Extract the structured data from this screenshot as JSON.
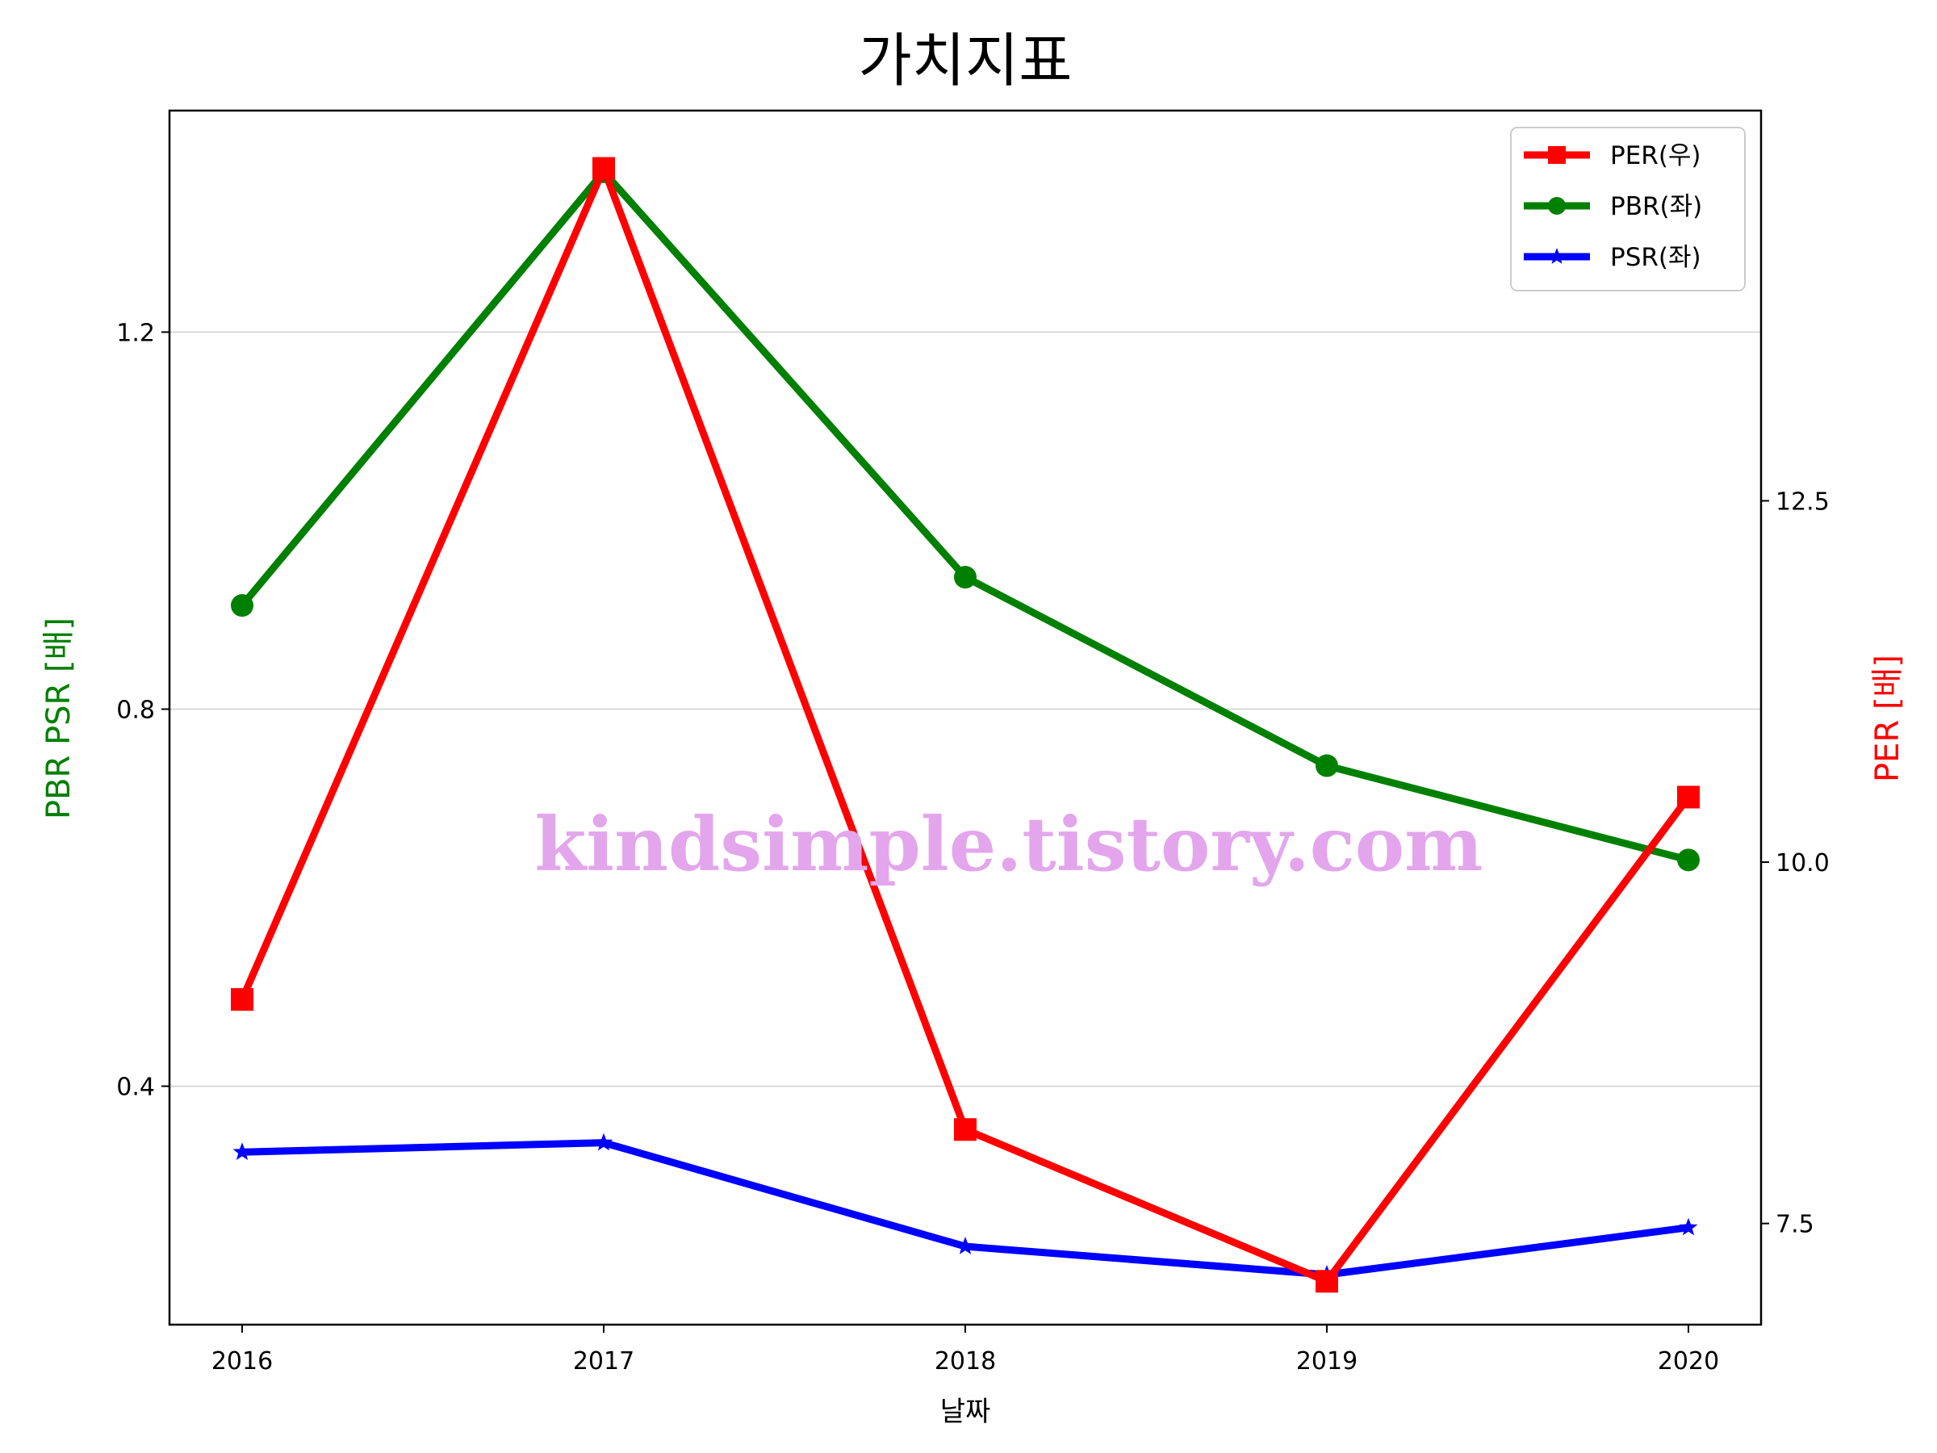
{
  "chart_data": {
    "type": "line",
    "title": "가치지표",
    "xlabel": "날짜",
    "ylabel_left": "PBR PSR [배]",
    "ylabel_right": "PER [배]",
    "categories": [
      "2016",
      "2017",
      "2018",
      "2019",
      "2020"
    ],
    "ylim_left": [
      0.147,
      1.435
    ],
    "ylim_right": [
      6.8,
      15.2
    ],
    "yticks_left": [
      0.4,
      0.8,
      1.2
    ],
    "yticks_left_labels": [
      "0.4",
      "0.8",
      "1.2"
    ],
    "yticks_right": [
      7.5,
      10.0,
      12.5
    ],
    "yticks_right_labels": [
      "7.5",
      "10.0",
      "12.5"
    ],
    "grid": "horizontal",
    "legend_position": "top-right",
    "series": [
      {
        "name": "PER(우)",
        "axis": "right",
        "color": "#ff0000",
        "marker": "square",
        "values": [
          9.05,
          14.8,
          8.15,
          7.1,
          10.45
        ]
      },
      {
        "name": "PBR(좌)",
        "axis": "left",
        "color": "#008000",
        "marker": "circle",
        "values": [
          0.91,
          1.37,
          0.94,
          0.74,
          0.64
        ]
      },
      {
        "name": "PSR(좌)",
        "axis": "left",
        "color": "#0000ff",
        "marker": "star",
        "values": [
          0.33,
          0.34,
          0.23,
          0.2,
          0.25
        ]
      }
    ]
  },
  "watermark": {
    "text": "kindsimple.tistory.com",
    "color": "#e3a6ec"
  }
}
